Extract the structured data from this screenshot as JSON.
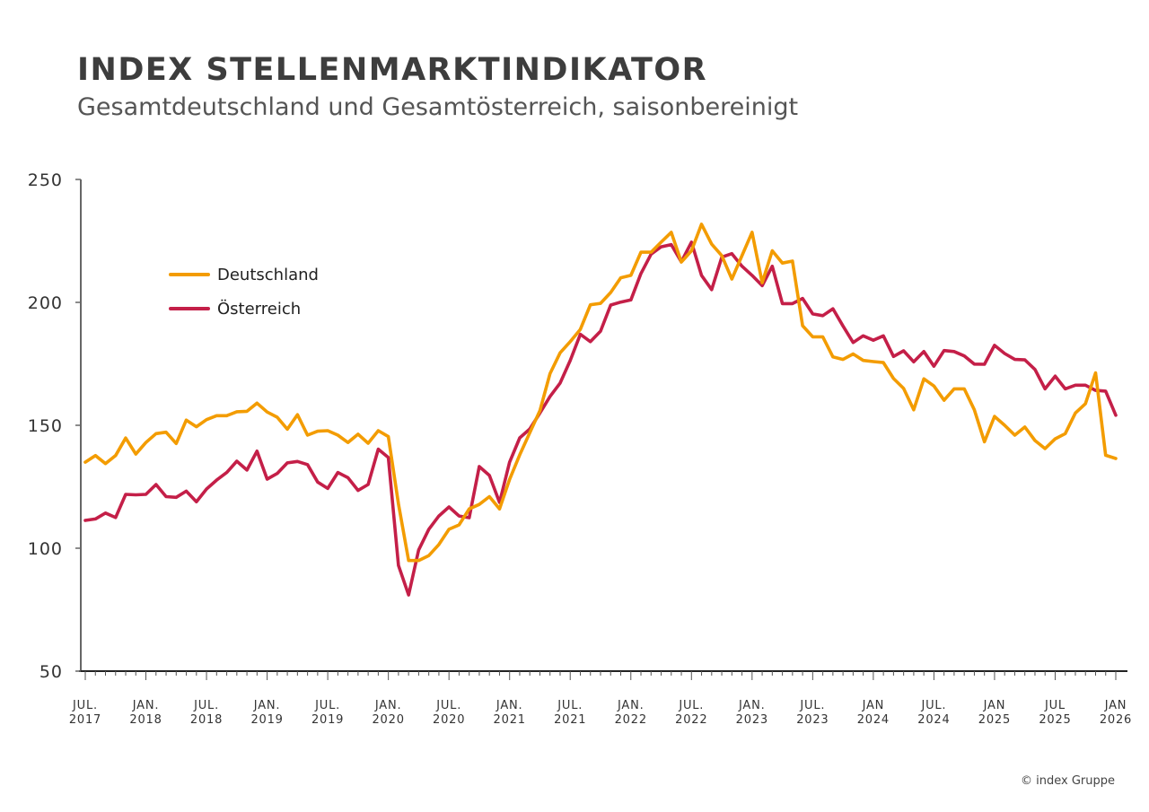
{
  "title": "INDEX STELLENMARKTINDIKATOR",
  "subtitle": "Gesamtdeutschland und Gesamtösterreich, saisonbereinigt",
  "copyright": "© index Gruppe",
  "chart_data": {
    "type": "line",
    "title": "INDEX STELLENMARKTINDIKATOR",
    "subtitle": "Gesamtdeutschland und Gesamtösterreich, saisonbereinigt",
    "x_start": "2017-07",
    "x_end": "2026-01",
    "x_frequency": "monthly",
    "ylim": [
      50,
      250
    ],
    "yticks": [
      50,
      100,
      150,
      200,
      250
    ],
    "xticks": [
      {
        "line1": "JUL.",
        "line2": "2017"
      },
      {
        "line1": "JAN.",
        "line2": "2018"
      },
      {
        "line1": "JUL.",
        "line2": "2018"
      },
      {
        "line1": "JAN.",
        "line2": "2019"
      },
      {
        "line1": "JUL.",
        "line2": "2019"
      },
      {
        "line1": "JAN.",
        "line2": "2020"
      },
      {
        "line1": "JUL.",
        "line2": "2020"
      },
      {
        "line1": "JAN.",
        "line2": "2021"
      },
      {
        "line1": "JUL.",
        "line2": "2021"
      },
      {
        "line1": "JAN.",
        "line2": "2022"
      },
      {
        "line1": "JUL.",
        "line2": "2022"
      },
      {
        "line1": "JAN.",
        "line2": "2023"
      },
      {
        "line1": "JUL.",
        "line2": "2023"
      },
      {
        "line1": "JAN",
        "line2": "2024"
      },
      {
        "line1": "JUL.",
        "line2": "2024"
      },
      {
        "line1": "JAN",
        "line2": "2025"
      },
      {
        "line1": "JUL",
        "line2": "2025"
      },
      {
        "line1": "JAN",
        "line2": "2026"
      }
    ],
    "grid": false,
    "legend_placement": "top-left",
    "series": [
      {
        "name": "Deutschland",
        "color": "#F39C00",
        "values": [
          135,
          137.7,
          134.4,
          137.7,
          144.8,
          138.3,
          143,
          146.6,
          147.2,
          142.6,
          152.1,
          149.4,
          152.3,
          153.9,
          153.9,
          155.5,
          155.7,
          159,
          155.4,
          153.3,
          148.4,
          154.3,
          146,
          147.6,
          147.8,
          146,
          143,
          146.4,
          142.7,
          147.8,
          145.4,
          118,
          95,
          95,
          97,
          101.5,
          107.7,
          109.5,
          116,
          117.8,
          121,
          116,
          128,
          138,
          147,
          156,
          171,
          179.5,
          184,
          189,
          199,
          199.6,
          204,
          210,
          211,
          220.4,
          220.4,
          224.5,
          228.5,
          216.4,
          221,
          231.8,
          223.7,
          219,
          209.5,
          219,
          228.5,
          208,
          221,
          216,
          216.8,
          190.5,
          186,
          186,
          177.8,
          176.8,
          179,
          176.4,
          175.9,
          175.5,
          169,
          165,
          156.3,
          168.9,
          166,
          160.2,
          164.8,
          164.8,
          156.3,
          143.3,
          153.6,
          150,
          146,
          149.3,
          143.8,
          140.5,
          144.5,
          146.6,
          155,
          158.8,
          171.3,
          137.8,
          136.5
        ]
      },
      {
        "name": "Österreich",
        "color": "#C41F48",
        "values": [
          111.3,
          111.9,
          114.3,
          112.5,
          121.9,
          121.7,
          121.9,
          125.9,
          121,
          120.7,
          123.2,
          118.9,
          124.1,
          127.7,
          130.8,
          135.4,
          131.8,
          139.5,
          128.1,
          130.4,
          134.7,
          135.3,
          134,
          126.9,
          124.3,
          130.8,
          128.7,
          123.5,
          125.9,
          140.3,
          136.9,
          93,
          81,
          99.3,
          107.7,
          113.1,
          116.8,
          113.1,
          112.4,
          133.2,
          129.6,
          118.6,
          135,
          144.9,
          148.5,
          155,
          161.7,
          167.2,
          176.3,
          187,
          184,
          188.3,
          198.9,
          200.1,
          201,
          211.7,
          219.6,
          222.6,
          223.5,
          216.5,
          224.5,
          211,
          205.2,
          218.4,
          219.8,
          214.7,
          211,
          206.8,
          214.7,
          199.5,
          199.5,
          201.6,
          195.3,
          194.6,
          197.4,
          190.4,
          183.7,
          186.4,
          184.6,
          186.4,
          178,
          180.3,
          175.8,
          180,
          174,
          180.4,
          180,
          178.2,
          174.9,
          174.8,
          182.5,
          179.2,
          176.8,
          176.6,
          172.7,
          164.8,
          170,
          164.8,
          166.3,
          166.3,
          164.2,
          163.9,
          154.1
        ]
      }
    ]
  }
}
